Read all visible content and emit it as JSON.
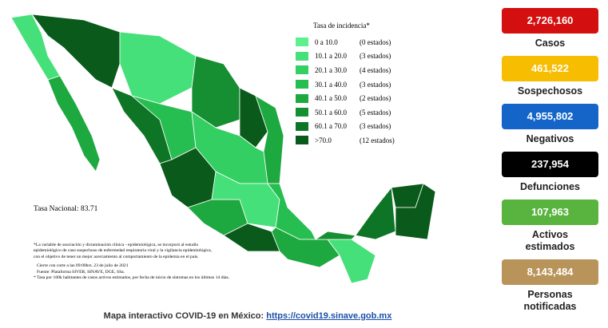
{
  "legend": {
    "title": "Tasa de incidencia*",
    "items": [
      {
        "range": "0 a 10.0",
        "count": "(0 estados)",
        "color": "#5cf08e"
      },
      {
        "range": "10.1 a 20.0",
        "count": "(3 estados)",
        "color": "#45e07a"
      },
      {
        "range": "20.1 a 30.0",
        "count": "(4 estados)",
        "color": "#33cf62"
      },
      {
        "range": "30.1 a 40.0",
        "count": "(3 estados)",
        "color": "#26be50"
      },
      {
        "range": "40.1 a 50.0",
        "count": "(2 estados)",
        "color": "#1ea840"
      },
      {
        "range": "50.1 a 60.0",
        "count": "(5 estados)",
        "color": "#158f31"
      },
      {
        "range": "60.1 a 70.0",
        "count": "(3 estados)",
        "color": "#0f7526"
      },
      {
        "range": ">70.0",
        "count": "(12 estados)",
        "color": "#0a5a1b"
      }
    ]
  },
  "national_rate": "Tasa Nacional: 83.71",
  "notes": [
    "*La variable de asociación y dictaminación clínica - epidemiológica, se incorporó al estudio",
    "epidemiológico de caso sospechoso de enfermedad respiratoria viral y la vigilancia epidemiológica,",
    "con el objetivo de tener un mejor acercamiento al comportamiento de la epidemia en el país.",
    "Cierre con corte a las 09:00hrs. 23 de julio de 2021",
    "Fuente: Plataforma SIVER, SINAVE, DGE, SSa.",
    "* Tasa por 100k habitantes de casos activos estimados, por fecha de inicio de síntomas en los últimos 14 días."
  ],
  "stats": [
    {
      "value": "2,726,160",
      "label": [
        "Casos"
      ],
      "color": "#d40f0f"
    },
    {
      "value": "461,522",
      "label": [
        "Sospechosos"
      ],
      "color": "#f7bd00"
    },
    {
      "value": "4,955,802",
      "label": [
        "Negativos"
      ],
      "color": "#1565c8"
    },
    {
      "value": "237,954",
      "label": [
        "Defunciones"
      ],
      "color": "#000000"
    },
    {
      "value": "107,963",
      "label": [
        "Activos",
        "estimados"
      ],
      "color": "#58b43e"
    },
    {
      "value": "8,143,484",
      "label": [
        "Personas",
        "notificadas"
      ],
      "color": "#b8945a"
    }
  ],
  "footer": {
    "text": "Mapa interactivo COVID-19 en México:",
    "link": "https://covid19.sinave.gob.mx"
  }
}
